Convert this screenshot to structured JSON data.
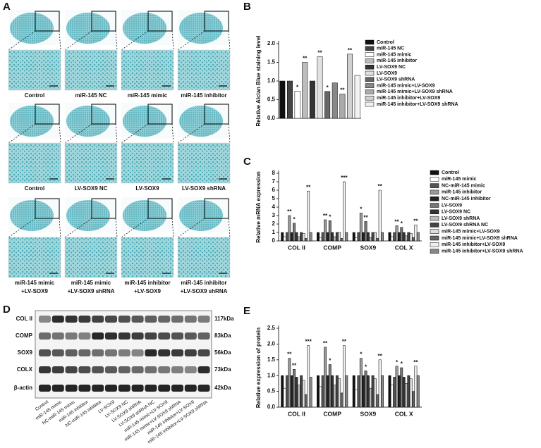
{
  "panel_labels": [
    "A",
    "B",
    "C",
    "D",
    "E"
  ],
  "histology": {
    "captions": [
      [
        "Control"
      ],
      [
        "miR-145 NC"
      ],
      [
        "miR-145 mimic"
      ],
      [
        "miR-145 inhibitor"
      ],
      [
        "Control"
      ],
      [
        "LV-SOX9 NC"
      ],
      [
        "LV-SOX9"
      ],
      [
        "LV-SOX9 shRNA"
      ],
      [
        "miR-145 mimic",
        "+LV-SOX9"
      ],
      [
        "miR-145 mimic",
        "+LV-SOX9 shRNA"
      ],
      [
        "miR-145 inhibitor",
        "+LV-SOX9"
      ],
      [
        "miR-145 inhibitor",
        "+LV-SOX9 shRNA"
      ]
    ]
  },
  "western_blot": {
    "proteins": [
      "COL II",
      "COMP",
      "SOX9",
      "COLX",
      "β-actin"
    ],
    "sizes": [
      "117kDa",
      "83kDa",
      "56kDa",
      "73kDa",
      "42kDa"
    ],
    "lanes": [
      "Control",
      "miR-145 mimic",
      "NC-miR-145 mimic",
      "miR-145 inhibitor",
      "NC-miR-145 inhibitor",
      "LV-SOX9",
      "LV-SOX9 NC",
      "LV-SOX9 shRNA",
      "LV-SOX9 shRNA NC",
      "miR-145 mimic+LV-SOX9",
      "miR-145 mimic+LV-SOX9 shRNA",
      "miR-145 inhibitor+LV-SOX9",
      "miR-145 inhibitor+LV-SOX9 shRNA"
    ]
  },
  "chart_data": [
    {
      "type": "bar",
      "y_label": "Relative Alcian Blue staining level",
      "categories": [
        "Control",
        "miR-145 NC",
        "miR-145 mimic",
        "miR-145 inhibitor",
        "LV-SOX9 NC",
        "LV-SOX9",
        "LV-SOX9 shRNA",
        "miR-145 mimic+LV-SOX9",
        "miR-145 mimic+LV-SOX9 shRNA",
        "miR-145 inhibitor+LV-SOX9",
        "miR-145 inhibitor+LV-SOX9 shRNA"
      ],
      "values": [
        1.0,
        1.0,
        0.73,
        1.5,
        1.0,
        1.65,
        0.72,
        0.95,
        0.65,
        1.72,
        1.15
      ],
      "significance": [
        null,
        null,
        "*",
        "**",
        null,
        "**",
        "*",
        null,
        "**",
        "**",
        null
      ],
      "colors": [
        "#111111",
        "#444444",
        "#ffffff",
        "#bdbdbd",
        "#333333",
        "#e0e0e0",
        "#666666",
        "#888888",
        "#aaaaaa",
        "#d0d0d0",
        "#f2f2f2"
      ],
      "ylim": [
        0,
        2
      ],
      "yticks": [
        {
          "value": 0,
          "label": "0.0"
        },
        0.5,
        {
          "value": 1,
          "label": "1.0"
        },
        1.5,
        {
          "value": 2,
          "label": "2.0"
        }
      ],
      "legend": true
    },
    {
      "type": "grouped_bar",
      "y_label": "Relative mRNA expression",
      "categories": [
        "COL II",
        "COMP",
        "SOX9",
        "COL X"
      ],
      "ylim": [
        0,
        8
      ],
      "yticks": [
        0,
        1,
        2,
        3,
        4,
        5,
        6,
        7,
        8
      ],
      "legend": true,
      "series": [
        {
          "name": "Control",
          "color": "#111111",
          "values": [
            1,
            1,
            1,
            1
          ]
        },
        {
          "name": "miR-145 mimic",
          "color": "#ffffff",
          "values": [
            0.5,
            0.4,
            0.4,
            0.5
          ]
        },
        {
          "name": "NC-miR-145 mimic",
          "color": "#555555",
          "values": [
            1,
            1,
            1,
            1
          ]
        },
        {
          "name": "miR-145 inhibitor",
          "color": "#999999",
          "values": [
            3.0,
            2.5,
            3.3,
            1.8
          ],
          "significance": [
            "**",
            "**",
            "*",
            "**"
          ]
        },
        {
          "name": "NC-miR-145 inhibitor",
          "color": "#222222",
          "values": [
            1,
            1,
            1,
            1
          ]
        },
        {
          "name": "LV-SOX9",
          "color": "#777777",
          "values": [
            2.1,
            2.4,
            2.3,
            1.6
          ],
          "significance": [
            "*",
            "*",
            "**",
            "*"
          ]
        },
        {
          "name": "LV-SOX9 NC",
          "color": "#333333",
          "values": [
            1,
            1,
            1,
            1
          ]
        },
        {
          "name": "LV-SOX9 shRNA",
          "color": "#bbbbbb",
          "values": [
            0.5,
            0.5,
            0.4,
            0.6
          ]
        },
        {
          "name": "LV-SOX9 shRNA NC",
          "color": "#444444",
          "values": [
            1,
            1,
            1,
            1
          ]
        },
        {
          "name": "miR-145 mimic+LV-SOX9",
          "color": "#dddddd",
          "values": [
            0.9,
            1,
            1,
            0.9
          ]
        },
        {
          "name": "miR-145 mimic+LV-SOX9 shRNA",
          "color": "#666666",
          "values": [
            0.3,
            0.3,
            0.3,
            0.4
          ]
        },
        {
          "name": "miR-145 inhibitor+LV-SOX9",
          "color": "#eeeeee",
          "values": [
            5.9,
            7.0,
            6.0,
            1.9
          ],
          "significance": [
            "**",
            "***",
            "**",
            "**"
          ]
        },
        {
          "name": "miR-145 inhibitor+LV-SOX9 shRNA",
          "color": "#888888",
          "values": [
            1,
            1,
            1,
            1
          ]
        }
      ]
    },
    {
      "type": "grouped_bar",
      "y_label": "Relative expression of protein",
      "categories": [
        "COL II",
        "COMP",
        "SOX9",
        "COL X"
      ],
      "ylim": [
        0,
        2.5
      ],
      "yticks": [
        {
          "value": 0,
          "label": "0.0"
        },
        0.5,
        {
          "value": 1,
          "label": "1.0"
        },
        1.5,
        {
          "value": 2,
          "label": "2.0"
        },
        2.5
      ],
      "legend": false,
      "series": [
        {
          "color": "#111111",
          "values": [
            1,
            1,
            1,
            1
          ]
        },
        {
          "color": "#ffffff",
          "values": [
            0.6,
            0.65,
            0.55,
            0.7
          ]
        },
        {
          "color": "#555555",
          "values": [
            1,
            1,
            1,
            0.95
          ]
        },
        {
          "color": "#999999",
          "values": [
            1.55,
            1.9,
            1.55,
            1.3
          ],
          "significance": [
            "**",
            "**",
            "*",
            "*"
          ]
        },
        {
          "color": "#222222",
          "values": [
            1,
            1,
            1,
            1
          ]
        },
        {
          "color": "#777777",
          "values": [
            1.2,
            1.35,
            1.15,
            1.25
          ],
          "significance": [
            "**",
            "*",
            "*",
            "*"
          ]
        },
        {
          "color": "#333333",
          "values": [
            0.95,
            1,
            1,
            0.95
          ]
        },
        {
          "color": "#bbbbbb",
          "values": [
            0.7,
            0.7,
            0.6,
            0.75
          ]
        },
        {
          "color": "#444444",
          "values": [
            1,
            1,
            1,
            1
          ]
        },
        {
          "color": "#dddddd",
          "values": [
            0.85,
            0.9,
            0.9,
            0.9
          ]
        },
        {
          "color": "#666666",
          "values": [
            0.4,
            0.45,
            0.4,
            0.5
          ]
        },
        {
          "color": "#eeeeee",
          "values": [
            1.95,
            1.95,
            1.5,
            1.3
          ],
          "significance": [
            "***",
            "**",
            "**",
            "**"
          ]
        },
        {
          "color": "#888888",
          "values": [
            0.95,
            1,
            1,
            1
          ]
        }
      ]
    }
  ]
}
